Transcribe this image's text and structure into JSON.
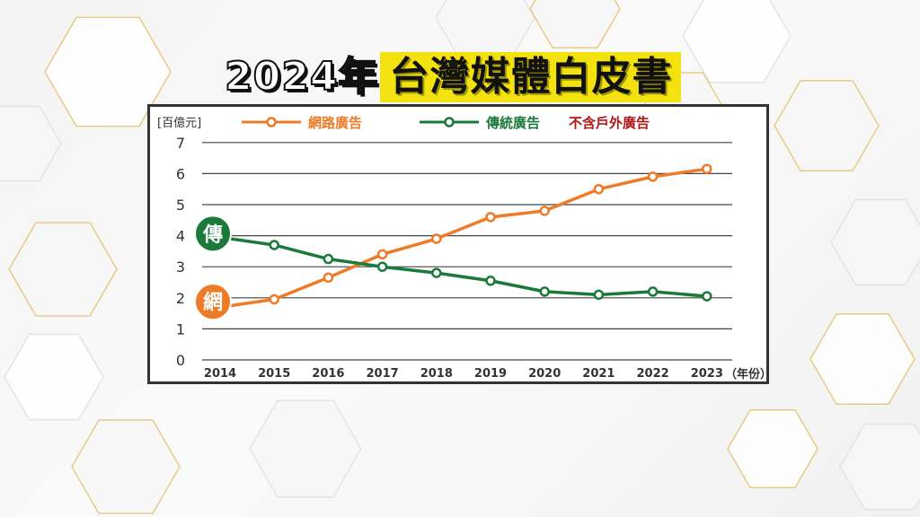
{
  "title": {
    "year_part": "2024年",
    "subject_part": "台灣媒體白皮書"
  },
  "colors": {
    "online": "#ee7b27",
    "traditional": "#1b7a3a",
    "note": "#b01818",
    "title_highlight": "#f3e20f"
  },
  "chart_data": {
    "type": "line",
    "unit_label": "[百億元]",
    "x_unit_label": "（年份）",
    "categories": [
      "2014",
      "2015",
      "2016",
      "2017",
      "2018",
      "2019",
      "2020",
      "2021",
      "2022",
      "2023"
    ],
    "ylim": [
      0,
      7
    ],
    "y_ticks": [
      "0",
      "1",
      "2",
      "3",
      "4",
      "5",
      "6",
      "7"
    ],
    "grid": true,
    "legend_position": "top",
    "legend_note": "不含戶外廣告",
    "series": [
      {
        "name": "網路廣告",
        "badge": "網",
        "color": "#ee7b27",
        "values": [
          1.7,
          1.95,
          2.65,
          3.4,
          3.9,
          4.6,
          4.8,
          5.5,
          5.9,
          6.15
        ]
      },
      {
        "name": "傳統廣告",
        "badge": "傳",
        "color": "#1b7a3a",
        "values": [
          3.95,
          3.7,
          3.25,
          3.0,
          2.8,
          2.55,
          2.2,
          2.1,
          2.2,
          2.05
        ]
      }
    ]
  }
}
